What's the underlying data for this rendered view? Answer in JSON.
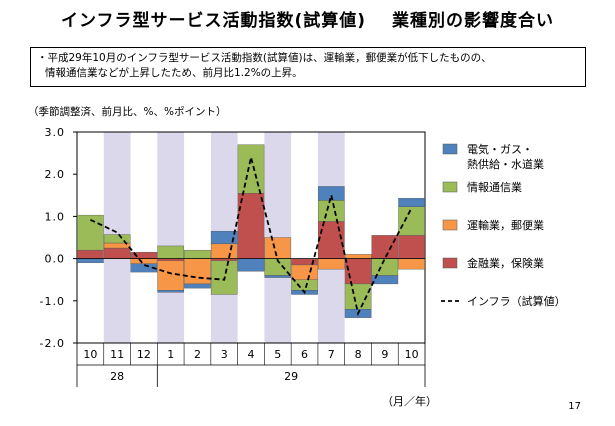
{
  "title": "インフラ型サービス活動指数(試算値)",
  "title_right": "業種別の影響度合い",
  "note_line1": "・平成29年10月のインフラ型サービス活動指数(試算値)は、運輸業，郵便業が低下したものの、",
  "note_line2": "情報通信業などが上昇したため、前月比1.2%の上昇。",
  "unit_label": "（季節調整済、前月比、%、%ポイント）",
  "page_number": "17",
  "chart_data": {
    "type": "bar",
    "stacked": true,
    "categories": [
      "10",
      "11",
      "12",
      "1",
      "2",
      "3",
      "4",
      "5",
      "6",
      "7",
      "8",
      "9",
      "10"
    ],
    "year_labels": [
      {
        "label": "28",
        "from": 0,
        "to": 2
      },
      {
        "label": "29",
        "from": 3,
        "to": 12
      }
    ],
    "xlabel": "（月／年）",
    "ylim": [
      -2.0,
      3.0
    ],
    "yticks": [
      "3.0",
      "2.0",
      "1.0",
      "0.0",
      "-1.0",
      "-2.0"
    ],
    "ytick_values": [
      3,
      2,
      1,
      0,
      -1,
      -2
    ],
    "shaded_categories": [
      1,
      3,
      5,
      7,
      9
    ],
    "shade_color": "#dcd8ec",
    "series": [
      {
        "name": "金融業,保険業",
        "color": "#c0504d",
        "values": [
          0.2,
          0.25,
          0.15,
          -0.05,
          0.0,
          -0.05,
          1.55,
          0.0,
          -0.15,
          0.88,
          -0.6,
          0.55,
          0.55
        ]
      },
      {
        "name": "運輸業,郵便業",
        "color": "#f79646",
        "values": [
          0.0,
          0.12,
          -0.12,
          -0.7,
          -0.6,
          0.35,
          0.0,
          0.5,
          -0.35,
          -0.25,
          0.1,
          0.0,
          -0.25
        ]
      },
      {
        "name": "情報通信業",
        "color": "#9bbb59",
        "values": [
          0.83,
          0.2,
          0.0,
          0.3,
          0.2,
          -0.8,
          1.15,
          -0.4,
          -0.25,
          0.5,
          -0.6,
          -0.4,
          0.68
        ]
      },
      {
        "name": "電気・ガス・熱供給・水道業",
        "color": "#4f81bd",
        "values": [
          -0.1,
          0.0,
          -0.2,
          -0.05,
          -0.1,
          0.3,
          -0.3,
          -0.05,
          -0.1,
          0.33,
          -0.2,
          -0.2,
          0.2
        ]
      }
    ],
    "legend": [
      {
        "kind": "box",
        "color": "#4f81bd",
        "lines": [
          "電気・ガス・",
          "熱供給・水道業"
        ]
      },
      {
        "kind": "box",
        "color": "#9bbb59",
        "lines": [
          "情報通信業"
        ]
      },
      {
        "kind": "box",
        "color": "#f79646",
        "lines": [
          "運輸業，郵便業"
        ]
      },
      {
        "kind": "box",
        "color": "#c0504d",
        "lines": [
          "金融業，保険業"
        ]
      },
      {
        "kind": "dash",
        "color": "#000000",
        "lines": [
          "インフラ（試算値）"
        ]
      }
    ],
    "line_series": {
      "name": "インフラ（試算値）",
      "values": [
        0.92,
        0.62,
        -0.15,
        -0.35,
        -0.45,
        -0.5,
        2.4,
        -0.05,
        -0.8,
        1.5,
        -1.3,
        0.0,
        1.2
      ]
    }
  }
}
